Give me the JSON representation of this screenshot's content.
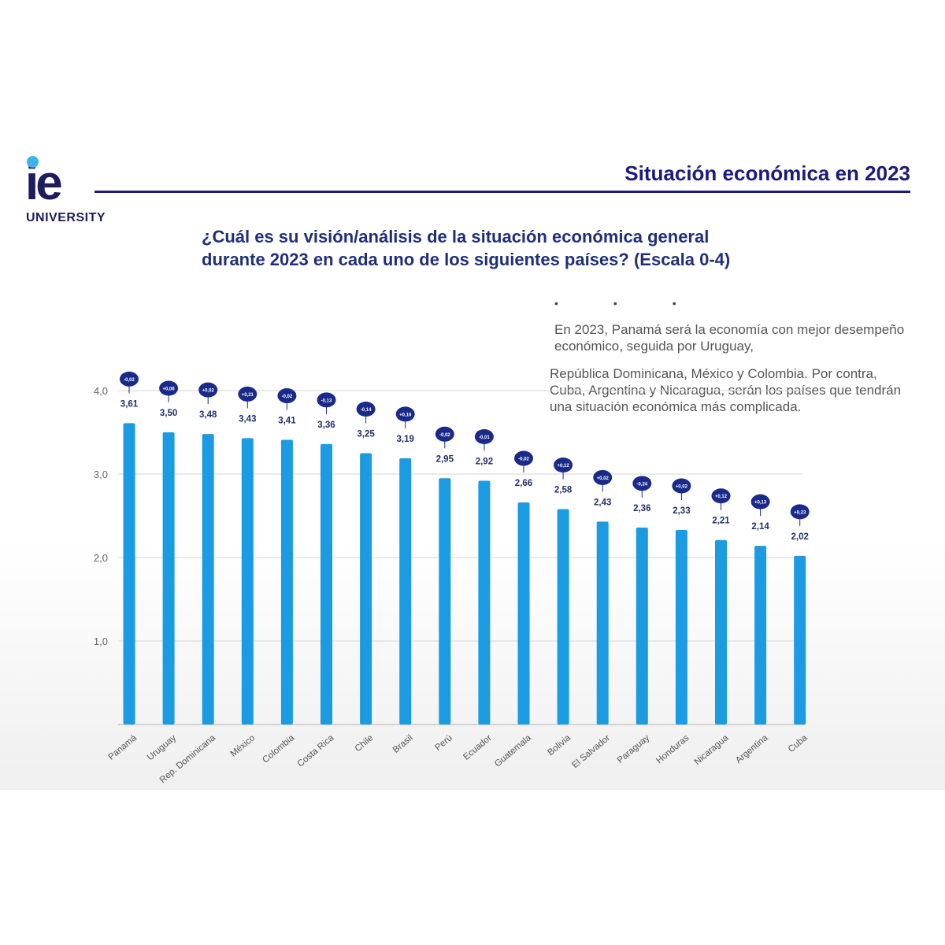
{
  "header": {
    "logo_text": "ie",
    "logo_subtext": "UNIVERSITY",
    "slide_title": "Situación económica en 2023"
  },
  "question": "¿Cuál es su visión/análisis de la situación económica general durante 2023 en cada uno de los siguientes países? (Escala 0-4)",
  "note": {
    "paragraph_1": "En 2023, Panamá será la economía con mejor desempeño económico, seguida por Uruguay,",
    "paragraph_2": "República Dominicana, México y Colombia. Por contra, Cuba, Argentina y Nicaragua, serán los países que tendrán una situación económica más complicada."
  },
  "colors": {
    "bar": "#1a9be2",
    "badge": "#1a2a8a",
    "title": "#1a1a80",
    "logo_dot": "#3cb1ea",
    "value_label": "#1f2f6a"
  },
  "chart_data": {
    "type": "bar",
    "categories": [
      "Panamá",
      "Uruguay",
      "Rep. Dominicana",
      "México",
      "Colombia",
      "Costa Rica",
      "Chile",
      "Brasil",
      "Perú",
      "Ecuador",
      "Guatemala",
      "Bolivia",
      "El Salvador",
      "Paraguay",
      "Honduras",
      "Nicaragua",
      "Argentina",
      "Cuba"
    ],
    "values": [
      3.61,
      3.5,
      3.48,
      3.43,
      3.41,
      3.36,
      3.25,
      3.19,
      2.95,
      2.92,
      2.66,
      2.58,
      2.43,
      2.36,
      2.33,
      2.21,
      2.14,
      2.02
    ],
    "value_labels": [
      "3,61",
      "3,50",
      "3,48",
      "3,43",
      "3,41",
      "3,36",
      "3,25",
      "3,19",
      "2,95",
      "2,92",
      "2,66",
      "2,58",
      "2,43",
      "2,36",
      "2,33",
      "2,21",
      "2,14",
      "2,02"
    ],
    "change_labels": [
      "-0,02",
      "+0,06",
      "+0,02",
      "+0,21",
      "-0,02",
      "-0,13",
      "-0,14",
      "+0,16",
      "-0,02",
      "-0,01",
      "-0,02",
      "+0,12",
      "+0,02",
      "-0,24",
      "+0,02",
      "+0,12",
      "+0,13",
      "+0,23"
    ],
    "yticks": [
      {
        "value": 1,
        "label": "1,0"
      },
      {
        "value": 2,
        "label": "2,0"
      },
      {
        "value": 3,
        "label": "3,0"
      },
      {
        "value": 4,
        "label": "4,0"
      }
    ],
    "ylim": [
      0,
      4
    ],
    "grid": true,
    "title": "¿Cuál es su visión/análisis de la situación económica general durante 2023 en cada uno de los siguientes países? (Escala 0-4)",
    "xlabel": "",
    "ylabel": ""
  }
}
